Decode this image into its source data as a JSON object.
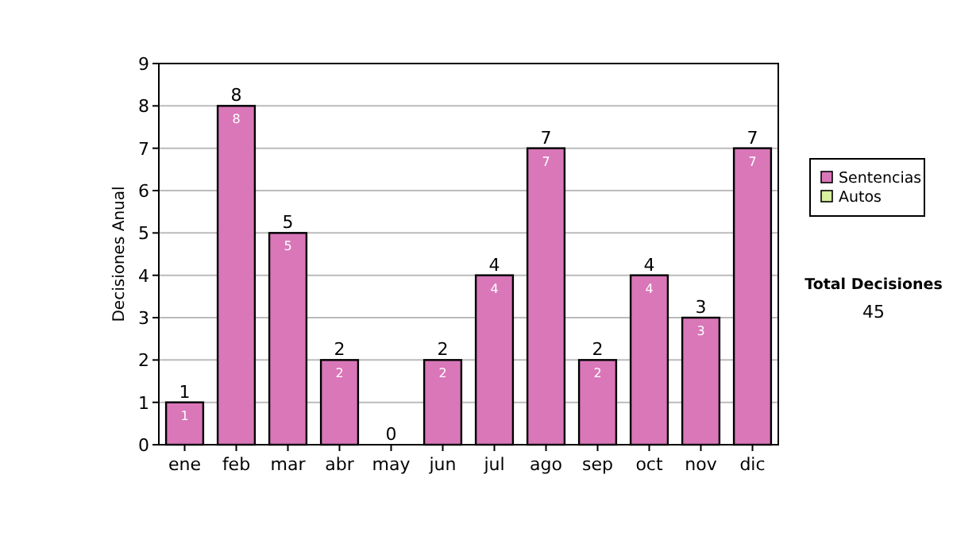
{
  "chart_data": {
    "type": "bar",
    "stacked": true,
    "ylabel": "Decisiones Anual",
    "categories": [
      "ene",
      "feb",
      "mar",
      "abr",
      "may",
      "jun",
      "jul",
      "ago",
      "sep",
      "oct",
      "nov",
      "dic"
    ],
    "series": [
      {
        "name": "Sentencias",
        "color": "#d977b9",
        "values": [
          1,
          8,
          5,
          2,
          0,
          2,
          4,
          7,
          2,
          4,
          3,
          7
        ],
        "value_labels": [
          "1",
          "8",
          "5",
          "2",
          null,
          "2",
          "4",
          "7",
          "2",
          "4",
          "3",
          "7"
        ]
      },
      {
        "name": "Autos",
        "color": "#d8f0a0",
        "values": [
          0,
          0,
          0,
          0,
          0,
          0,
          0,
          0,
          0,
          0,
          0,
          0
        ]
      }
    ],
    "totals": [
      "1",
      "8",
      "5",
      "2",
      "0",
      "2",
      "4",
      "7",
      "2",
      "4",
      "3",
      "7"
    ],
    "ylim": [
      0,
      9
    ],
    "yticks": [
      0,
      1,
      2,
      3,
      4,
      5,
      6,
      7,
      8,
      9
    ],
    "grid": "y",
    "legend": "right",
    "annotations": [
      "Total Decisiones",
      "45"
    ]
  }
}
